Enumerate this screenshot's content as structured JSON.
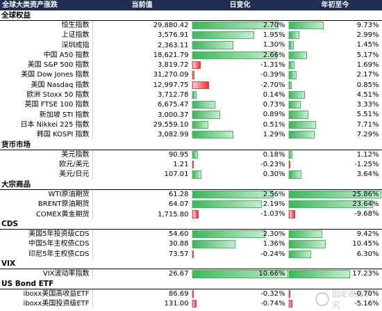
{
  "header": {
    "col1": "全球大类资产涨跌",
    "col2": "当前值",
    "col3": "日变化",
    "col4": "年初至今"
  },
  "scale": {
    "day_max": 3.0,
    "ytd_max": 26.0
  },
  "colors": {
    "header_bg": "#1f2e52",
    "positive": "#3cb85a",
    "negative": "#f23030"
  },
  "sections": [
    {
      "title": "全球权益",
      "rows": [
        {
          "name": "恒生指数",
          "value": "29,880.42",
          "day": "2.70%",
          "day_v": 2.7,
          "ytd": "9.73%",
          "ytd_v": 9.73
        },
        {
          "name": "上证指数",
          "value": "3,576.91",
          "day": "1.95%",
          "day_v": 1.95,
          "ytd": "2.99%",
          "ytd_v": 2.99
        },
        {
          "name": "深圳成指",
          "value": "2,363.11",
          "day": "1.30%",
          "day_v": 1.3,
          "ytd": "1.45%",
          "ytd_v": 1.45
        },
        {
          "name": "中国 A50 指数",
          "value": "18,621.79",
          "day": "2.66%",
          "day_v": 2.66,
          "ytd": "5.17%",
          "ytd_v": 5.17
        },
        {
          "name": "美国 S&P 500 指数",
          "value": "3,819.72",
          "day": "-1.31%",
          "day_v": -1.31,
          "ytd": "1.69%",
          "ytd_v": 1.69
        },
        {
          "name": "美国 Dow Jones 指数",
          "value": "31,270.09",
          "day": "-0.39%",
          "day_v": -0.39,
          "ytd": "2.17%",
          "ytd_v": 2.17
        },
        {
          "name": "美国 Nasdaq 指数",
          "value": "12,997.75",
          "day": "-2.70%",
          "day_v": -2.7,
          "ytd": "0.85%",
          "ytd_v": 0.85
        },
        {
          "name": "欧洲 Stoxx 50 指数",
          "value": "3,712.78",
          "day": "0.14%",
          "day_v": 0.14,
          "ytd": "4.51%",
          "ytd_v": 4.51
        },
        {
          "name": "英国 FTSE 100 指数",
          "value": "6,675.47",
          "day": "0.73%",
          "day_v": 0.73,
          "ytd": "3.33%",
          "ytd_v": 3.33
        },
        {
          "name": "新加坡 STI 指数",
          "value": "3,000.37",
          "day": "0.89%",
          "day_v": 0.89,
          "ytd": "5.51%",
          "ytd_v": 5.51
        },
        {
          "name": "日本 Nikkei 225 指数",
          "value": "29,559.10",
          "day": "0.51%",
          "day_v": 0.51,
          "ytd": "7.71%",
          "ytd_v": 7.71
        },
        {
          "name": "韩国 KOSPI 指数",
          "value": "3,082.99",
          "day": "1.29%",
          "day_v": 1.29,
          "ytd": "7.29%",
          "ytd_v": 7.29
        }
      ]
    },
    {
      "title": "货币市场",
      "rows": [
        {
          "name": "美元指数",
          "value": "90.95",
          "day": "0.18%",
          "day_v": 0.18,
          "ytd": "1.12%",
          "ytd_v": 1.12
        },
        {
          "name": "欧元/美元",
          "value": "1.21",
          "day": "-0.23%",
          "day_v": -0.23,
          "ytd": "-1.25%",
          "ytd_v": -1.25
        },
        {
          "name": "美元/日元",
          "value": "107.01",
          "day": "0.30%",
          "day_v": 0.3,
          "ytd": "3.64%",
          "ytd_v": 3.64
        }
      ]
    },
    {
      "title": "大宗商品",
      "rows": [
        {
          "name": "WTI原油期货",
          "value": "61.28",
          "day": "2.56%",
          "day_v": 2.56,
          "ytd": "25.86%",
          "ytd_v": 25.86
        },
        {
          "name": "BRENT原油期货",
          "value": "64.07",
          "day": "2.19%",
          "day_v": 2.19,
          "ytd": "23.64%",
          "ytd_v": 23.64
        },
        {
          "name": "COMEX黄金期货",
          "value": "1,715.80",
          "day": "-1.03%",
          "day_v": -1.03,
          "ytd": "-9.68%",
          "ytd_v": -9.68
        }
      ]
    },
    {
      "title": "CDS",
      "rows": [
        {
          "name": "美国5年投资级CDS",
          "value": "54.60",
          "day": "2.30%",
          "day_v": 2.3,
          "ytd": "9.42%",
          "ytd_v": 9.42
        },
        {
          "name": "中国5年主权债CDS",
          "value": "30.88",
          "day": "1.36%",
          "day_v": 1.36,
          "ytd": "10.45%",
          "ytd_v": 10.45
        },
        {
          "name": "印尼5年主权债CDS",
          "value": "73.57",
          "day": "-0.24%",
          "day_v": -0.24,
          "ytd": "6.30%",
          "ytd_v": 6.3
        }
      ]
    },
    {
      "title": "VIX",
      "rows": [
        {
          "name": "VIX波动率指数",
          "value": "26.67",
          "day": "10.66%",
          "day_v": 10.66,
          "ytd": "17.23%",
          "ytd_v": 17.23
        }
      ]
    },
    {
      "title": "US Bond ETF",
      "rows": [
        {
          "name": "iboxx美国高收益ETF",
          "value": "86.69",
          "day": "-0.32%",
          "day_v": -0.32,
          "ytd": "-0.70%",
          "ytd_v": -0.7
        },
        {
          "name": "iboxx美国投资级ETF",
          "value": "131.00",
          "day": "-0.74%",
          "day_v": -0.74,
          "ytd": "-5.16%",
          "ytd_v": -5.16
        }
      ]
    }
  ],
  "watermark": {
    "text": "固定收益研究",
    "icon": "wechat-icon"
  }
}
